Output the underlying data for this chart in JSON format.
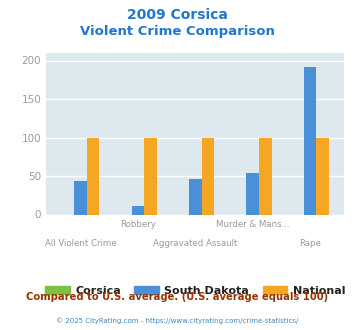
{
  "title_line1": "2009 Corsica",
  "title_line2": "Violent Crime Comparison",
  "title_color": "#2277cc",
  "categories": [
    "All Violent Crime",
    "Robbery",
    "Aggravated Assault",
    "Murder & Mans...",
    "Rape"
  ],
  "corsica": [
    0,
    0,
    0,
    0,
    0
  ],
  "south_dakota": [
    44,
    11,
    46,
    54,
    191
  ],
  "national": [
    100,
    100,
    100,
    100,
    100
  ],
  "corsica_color": "#7dc142",
  "south_dakota_color": "#4a90d9",
  "national_color": "#f5a623",
  "ylim": [
    0,
    210
  ],
  "yticks": [
    0,
    50,
    100,
    150,
    200
  ],
  "background_color": "#dde9ef",
  "grid_color": "#ffffff",
  "subtitle_note": "Compared to U.S. average. (U.S. average equals 100)",
  "footer": "© 2025 CityRating.com - https://www.cityrating.com/crime-statistics/",
  "subtitle_color": "#993300",
  "footer_color": "#4488bb",
  "tick_label_color": "#999999",
  "bar_width": 0.22
}
